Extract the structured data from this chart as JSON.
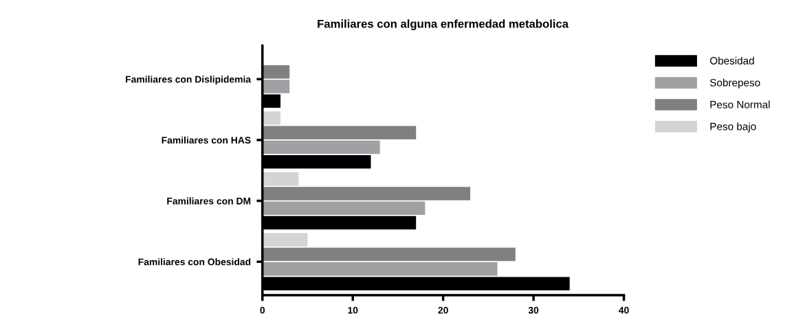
{
  "chart_data": {
    "type": "bar",
    "orientation": "horizontal",
    "title": "Familiares con alguna enfermedad metabolica",
    "categories": [
      "Familiares con Dislipidemia",
      "Familiares con HAS",
      "Familiares con DM",
      "Familiares con Obesidad"
    ],
    "series": [
      {
        "name": "Obesidad",
        "color": "#000000",
        "values": [
          2,
          12,
          17,
          34
        ]
      },
      {
        "name": "Sobrepeso",
        "color": "#a0a0a4",
        "values": [
          3,
          13,
          18,
          26
        ]
      },
      {
        "name": "Peso Normal",
        "color": "#808080",
        "values": [
          3,
          17,
          23,
          28
        ]
      },
      {
        "name": "Peso bajo",
        "color": "#d4d4d4",
        "values": [
          0,
          2,
          4,
          5
        ]
      }
    ],
    "xlim": [
      0,
      40
    ],
    "xticks": [
      0,
      10,
      20,
      30,
      40
    ],
    "legend": "top right",
    "grid": false
  }
}
